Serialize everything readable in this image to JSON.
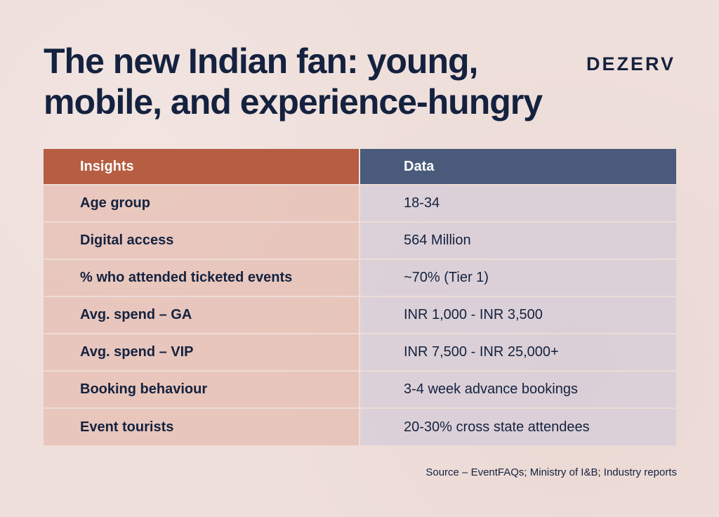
{
  "header": {
    "title_line1": "The new Indian fan: young,",
    "title_line2": "mobile, and experience-hungry",
    "brand": "DEZERV"
  },
  "table": {
    "columns": [
      "Insights",
      "Data"
    ],
    "rows": [
      {
        "insight": "Age group",
        "data": "18-34"
      },
      {
        "insight": "Digital access",
        "data": "564 Million"
      },
      {
        "insight": "% who attended ticketed events",
        "data": "~70% (Tier 1)"
      },
      {
        "insight": "Avg. spend – GA",
        "data": "INR 1,000 - INR 3,500"
      },
      {
        "insight": "Avg. spend – VIP",
        "data": "INR 7,500 - INR 25,000+"
      },
      {
        "insight": "Booking behaviour",
        "data": "3-4 week advance bookings"
      },
      {
        "insight": "Event tourists",
        "data": "20-30% cross state attendees"
      }
    ]
  },
  "footer": {
    "source": "Source – EventFAQs; Ministry of I&B; Industry reports"
  },
  "colors": {
    "background": "#efdfdb",
    "text": "#14223f",
    "header_insights": "#b75d41",
    "header_data": "#4a5a7a"
  }
}
